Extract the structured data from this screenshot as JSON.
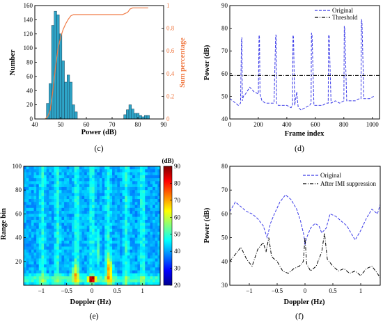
{
  "chart_data": [
    {
      "panel": "c",
      "type": "bar",
      "caption": "(c)",
      "xlabel": "Power (dB)",
      "ylabel": "Number",
      "ylabel_right": "Sum percentage",
      "xlim": [
        40,
        90
      ],
      "ylim": [
        0,
        160
      ],
      "ylim_right": [
        0,
        1
      ],
      "xticks": [
        "40",
        "50",
        "60",
        "70",
        "80",
        "90"
      ],
      "yticks": [
        "0",
        "20",
        "40",
        "60",
        "80",
        "100",
        "120",
        "140",
        "160"
      ],
      "yticks_right": [
        "0",
        "0.2",
        "0.4",
        "0.6",
        "0.8",
        "1"
      ],
      "bar_width": 1,
      "x": [
        45,
        46,
        47,
        48,
        49,
        50,
        51,
        52,
        53,
        54,
        55,
        56,
        75,
        76,
        77,
        78,
        79,
        80,
        81,
        82,
        83,
        84
      ],
      "values": [
        22,
        50,
        132,
        152,
        147,
        120,
        82,
        52,
        62,
        52,
        20,
        10,
        6,
        13,
        20,
        14,
        8,
        8,
        5,
        3,
        5,
        5
      ],
      "bar_color": "#2ea5c8",
      "cdf_color": "#f07b46",
      "cdf": {
        "x": [
          44,
          45,
          46,
          47,
          48,
          49,
          50,
          51,
          52,
          53,
          54,
          55,
          56,
          57,
          74,
          75,
          76,
          77,
          78,
          79,
          80,
          84
        ],
        "y": [
          0,
          0.02,
          0.08,
          0.25,
          0.45,
          0.62,
          0.72,
          0.79,
          0.84,
          0.88,
          0.91,
          0.92,
          0.92,
          0.92,
          0.92,
          0.93,
          0.94,
          0.97,
          0.98,
          0.98,
          0.98,
          0.98
        ]
      }
    },
    {
      "panel": "d",
      "type": "line",
      "caption": "(d)",
      "xlabel": "Frame index",
      "ylabel": "Power (dB)",
      "xlim": [
        0,
        1050
      ],
      "ylim": [
        40,
        90
      ],
      "xticks": [
        "0",
        "200",
        "400",
        "600",
        "800",
        "1000"
      ],
      "yticks": [
        "40",
        "50",
        "60",
        "70",
        "80",
        "90"
      ],
      "legend_position": "top-right",
      "series": [
        {
          "name": "Original",
          "style": "dashed",
          "color": "#3a3ae8",
          "x": [
            0,
            20,
            40,
            60,
            75,
            82,
            85,
            88,
            95,
            110,
            140,
            170,
            200,
            205,
            208,
            212,
            225,
            250,
            280,
            310,
            322,
            325,
            328,
            340,
            370,
            400,
            430,
            440,
            443,
            447,
            455,
            470,
            473,
            480,
            500,
            530,
            560,
            570,
            573,
            577,
            590,
            620,
            650,
            680,
            690,
            693,
            697,
            710,
            740,
            770,
            800,
            803,
            806,
            820,
            850,
            880,
            910,
            920,
            923,
            927,
            940,
            980,
            1010
          ],
          "y": [
            49,
            48,
            47,
            46,
            47,
            75,
            76,
            48,
            50,
            51,
            54,
            52,
            51,
            77,
            76,
            51,
            48,
            47,
            47,
            47,
            77,
            77,
            47,
            46,
            46,
            46,
            45,
            46,
            77,
            76,
            46,
            52,
            49,
            45,
            44,
            45,
            46,
            47,
            78,
            77,
            46,
            46,
            46,
            47,
            47,
            77,
            77,
            47,
            48,
            47,
            48,
            81,
            80,
            48,
            48,
            48,
            49,
            49,
            84,
            83,
            49,
            49,
            50
          ]
        },
        {
          "name": "Threshold",
          "style": "dash-dot",
          "color": "#000000",
          "x": [
            0,
            1050
          ],
          "y": [
            59.2,
            59.2
          ]
        }
      ]
    },
    {
      "panel": "e",
      "type": "heatmap",
      "caption": "(e)",
      "xlabel": "Doppler (Hz)",
      "ylabel": "Range bin",
      "xlim": [
        -1.35,
        1.35
      ],
      "ylim": [
        0,
        100
      ],
      "xticks": [
        "−1",
        "−0.5",
        "0",
        "0.5",
        "1"
      ],
      "yticks": [
        "20",
        "40",
        "60",
        "80",
        "100"
      ],
      "colorbar_unit": "(dB)",
      "colorbar_range": [
        20,
        90
      ],
      "colorbar_ticks": [
        "20",
        "30",
        "40",
        "50",
        "60",
        "70",
        "80",
        "90"
      ]
    },
    {
      "panel": "f",
      "type": "line",
      "caption": "(f)",
      "xlabel": "Doppler (Hz)",
      "ylabel": "Power (dB)",
      "xlim": [
        -1.35,
        1.35
      ],
      "ylim": [
        30,
        80
      ],
      "xticks": [
        "−1",
        "−0.5",
        "0",
        "0.5",
        "1"
      ],
      "yticks": [
        "30",
        "40",
        "50",
        "60",
        "70",
        "80"
      ],
      "legend_position": "top-right",
      "series": [
        {
          "name": "Original",
          "style": "dashed",
          "color": "#3a3ae8",
          "x": [
            -1.35,
            -1.25,
            -1.15,
            -1.05,
            -0.95,
            -0.85,
            -0.75,
            -0.68,
            -0.62,
            -0.55,
            -0.45,
            -0.35,
            -0.25,
            -0.15,
            -0.08,
            -0.02,
            0.0,
            0.03,
            0.1,
            0.18,
            0.25,
            0.3,
            0.38,
            0.45,
            0.55,
            0.65,
            0.75,
            0.85,
            0.9,
            1.0,
            1.1,
            1.2,
            1.3,
            1.35
          ],
          "y": [
            61,
            65,
            63,
            61,
            60,
            58,
            55,
            50,
            56,
            60,
            65,
            68,
            66,
            62,
            57,
            51,
            47,
            50,
            54,
            56,
            55,
            52,
            54,
            60,
            59,
            57,
            55,
            51,
            49,
            53,
            58,
            62,
            60,
            64
          ]
        },
        {
          "name": "After IMI suppression",
          "style": "dash-dot",
          "color": "#000000",
          "x": [
            -1.35,
            -1.25,
            -1.15,
            -1.05,
            -0.95,
            -0.85,
            -0.75,
            -0.7,
            -0.65,
            -0.6,
            -0.5,
            -0.4,
            -0.3,
            -0.2,
            -0.1,
            -0.03,
            0.0,
            0.03,
            0.1,
            0.2,
            0.3,
            0.35,
            0.4,
            0.5,
            0.6,
            0.7,
            0.8,
            0.9,
            1.0,
            1.1,
            1.2,
            1.3,
            1.35
          ],
          "y": [
            40,
            43,
            46,
            41,
            38,
            45,
            48,
            44,
            50,
            42,
            40,
            36,
            35,
            37,
            38,
            40,
            50,
            39,
            36,
            38,
            44,
            52,
            41,
            38,
            36,
            37,
            35,
            36,
            34,
            37,
            38,
            35,
            33
          ]
        }
      ]
    }
  ]
}
